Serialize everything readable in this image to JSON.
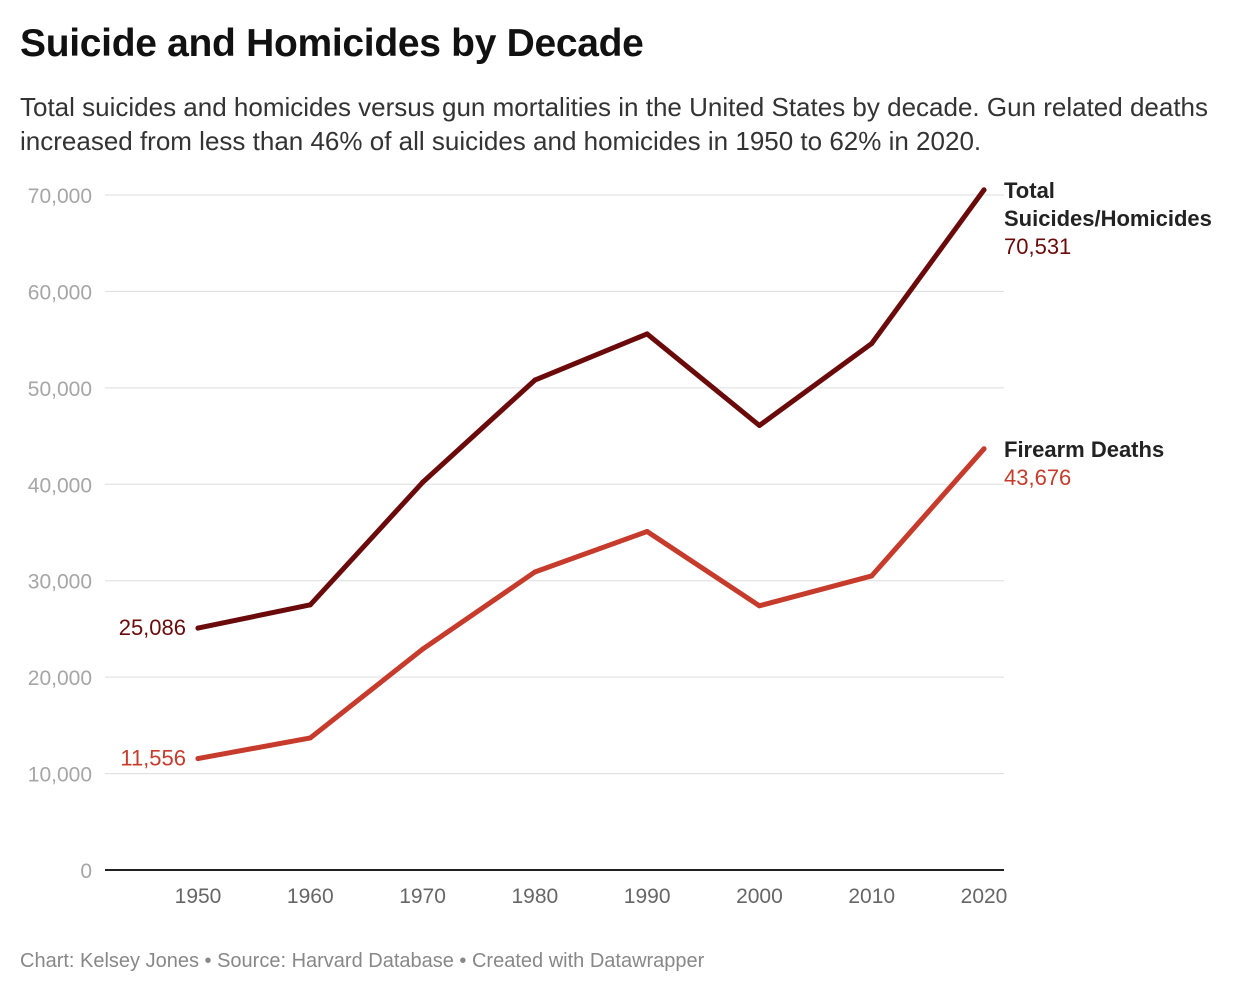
{
  "header": {
    "title": "Suicide and Homicides by Decade",
    "subtitle": "Total suicides and homicides versus gun mortalities in the United States by decade. Gun related deaths increased from less than 46% of all suicides and homicides in 1950 to 62% in 2020."
  },
  "footer": {
    "credit": "Chart: Kelsey Jones • Source: Harvard Database • Created with Datawrapper"
  },
  "chart_data": {
    "type": "line",
    "title": "Suicide and Homicides by Decade",
    "xlabel": "",
    "ylabel": "",
    "x": [
      1950,
      1960,
      1970,
      1980,
      1990,
      2000,
      2010,
      2020
    ],
    "x_tick_labels": [
      "1950",
      "1960",
      "1970",
      "1980",
      "1990",
      "2000",
      "2010",
      "2020"
    ],
    "ylim": [
      0,
      70000
    ],
    "y_ticks": [
      0,
      10000,
      20000,
      30000,
      40000,
      50000,
      60000,
      70000
    ],
    "y_tick_labels": [
      "0",
      "10,000",
      "20,000",
      "30,000",
      "40,000",
      "50,000",
      "60,000",
      "70,000"
    ],
    "grid": true,
    "legend": "direct labels at line ends",
    "series": [
      {
        "name": "Total Suicides/Homicides",
        "name_lines": [
          "Total",
          "Suicides/Homicides"
        ],
        "color": "#6b0a0a",
        "values": [
          25086,
          27500,
          40200,
          50800,
          55600,
          46100,
          54600,
          70531
        ],
        "start_label": "25,086",
        "end_label": "70,531"
      },
      {
        "name": "Firearm Deaths",
        "name_lines": [
          "Firearm Deaths"
        ],
        "color": "#c63b2b",
        "values": [
          11556,
          13700,
          22900,
          30900,
          35100,
          27400,
          30500,
          43676
        ],
        "start_label": "11,556",
        "end_label": "43,676"
      }
    ]
  }
}
